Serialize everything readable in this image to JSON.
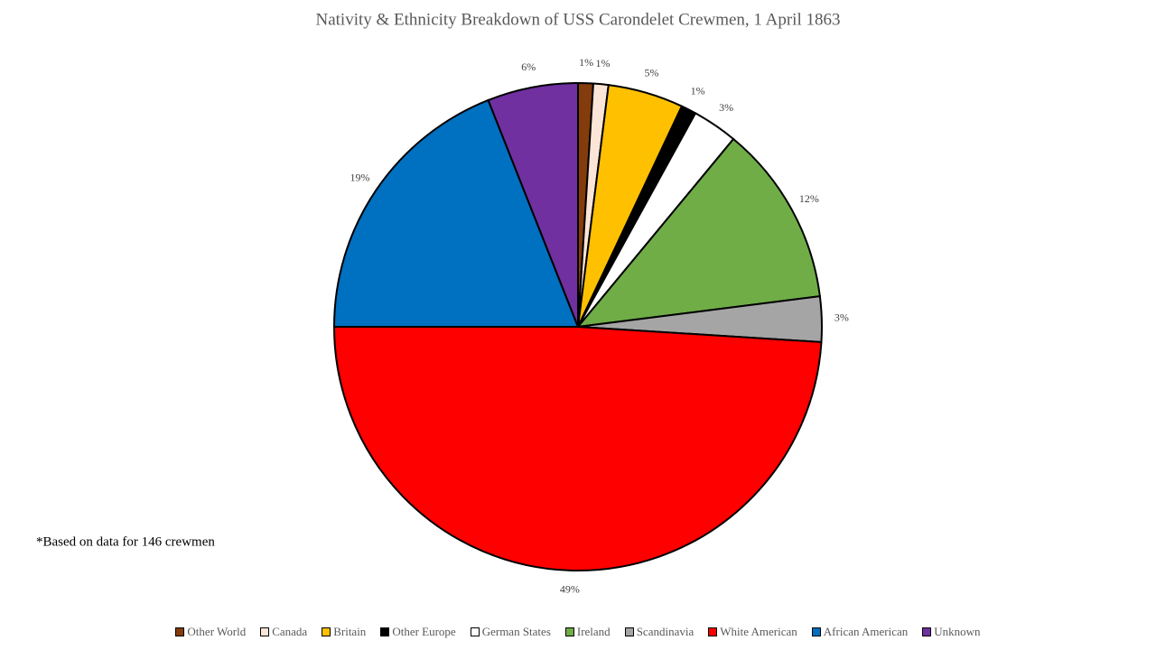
{
  "chart_data": {
    "type": "pie",
    "title": "Nativity & Ethnicity Breakdown of USS Carondelet  Crewmen, 1 April 1863",
    "note": "*Based on data for 146 crewmen",
    "categories": [
      "Other World",
      "Canada",
      "Britain",
      "Other Europe",
      "German States",
      "Ireland",
      "Scandinavia",
      "White American",
      "African American",
      "Unknown"
    ],
    "values": [
      1,
      1,
      5,
      1,
      3,
      12,
      3,
      49,
      19,
      6
    ],
    "value_labels": [
      "1%",
      "1%",
      "5%",
      "1%",
      "3%",
      "12%",
      "3%",
      "49%",
      "19%",
      "6%"
    ],
    "colors": [
      "#843c0c",
      "#fbe5d6",
      "#ffc000",
      "#000000",
      "#ffffff",
      "#70ad47",
      "#a5a5a5",
      "#ff0000",
      "#0070c0",
      "#7030a0"
    ],
    "legend": "bottom"
  }
}
